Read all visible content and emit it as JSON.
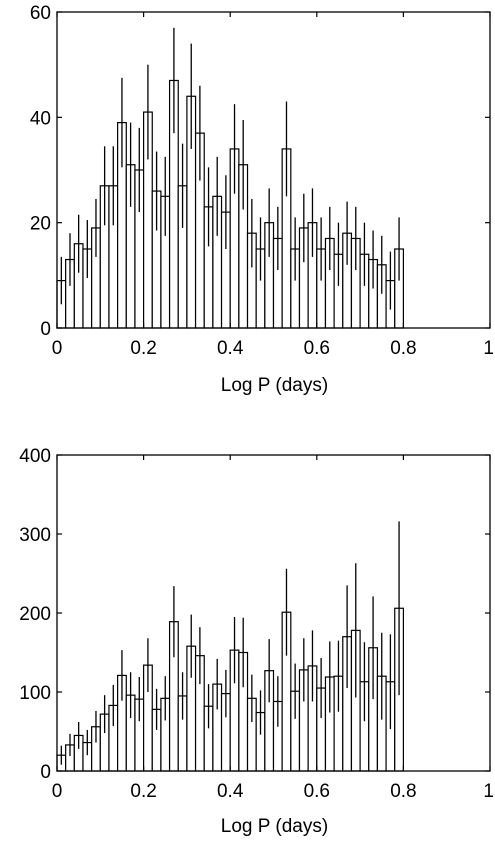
{
  "chart_data": [
    {
      "type": "bar",
      "title": "",
      "xlabel": "Log P (days)",
      "ylabel": "",
      "xlim": [
        0,
        1
      ],
      "ylim": [
        0,
        60
      ],
      "xticks": [
        0,
        0.2,
        0.4,
        0.6,
        0.8,
        1
      ],
      "xtick_labels": [
        "0",
        "0.2",
        "0.4",
        "0.6",
        "0.8",
        "1"
      ],
      "yticks": [
        0,
        20,
        40,
        60
      ],
      "ytick_labels": [
        "0",
        "20",
        "40",
        "60"
      ],
      "bin_width": 0.02,
      "values": [
        9,
        13,
        16,
        15,
        19,
        27,
        27,
        39,
        31,
        30,
        41,
        26,
        25,
        47,
        27,
        44,
        37,
        23,
        25,
        22,
        34,
        31,
        18,
        15,
        20,
        17,
        34,
        15,
        19,
        20,
        15,
        17,
        14,
        18,
        17,
        14,
        13,
        12,
        9,
        15
      ],
      "errors": [
        4.5,
        5,
        5.5,
        5.5,
        5.5,
        7.5,
        7.5,
        8.5,
        8,
        8,
        9,
        7.5,
        7.5,
        10,
        8,
        10,
        9,
        7.5,
        7.5,
        7,
        8.5,
        8.5,
        6.5,
        6,
        6.5,
        6,
        9,
        6,
        6.5,
        6.5,
        6,
        6,
        6,
        6,
        6,
        6,
        5.5,
        5.5,
        5.5,
        6
      ]
    },
    {
      "type": "bar",
      "title": "",
      "xlabel": "Log P (days)",
      "ylabel": "",
      "xlim": [
        0,
        1
      ],
      "ylim": [
        0,
        400
      ],
      "xticks": [
        0,
        0.2,
        0.4,
        0.6,
        0.8,
        1
      ],
      "xtick_labels": [
        "0",
        "0.2",
        "0.4",
        "0.6",
        "0.8",
        "1"
      ],
      "yticks": [
        0,
        100,
        200,
        300,
        400
      ],
      "ytick_labels": [
        "0",
        "100",
        "200",
        "300",
        "400"
      ],
      "bin_width": 0.02,
      "values": [
        20,
        33,
        45,
        36,
        56,
        72,
        83,
        121,
        96,
        91,
        134,
        78,
        92,
        189,
        95,
        158,
        146,
        82,
        110,
        98,
        153,
        150,
        92,
        74,
        127,
        88,
        201,
        101,
        128,
        133,
        105,
        119,
        120,
        170,
        178,
        113,
        156,
        120,
        113,
        206
      ],
      "errors": [
        12,
        14,
        17,
        16,
        20,
        24,
        26,
        32,
        29,
        28,
        34,
        26,
        28,
        45,
        30,
        40,
        36,
        28,
        32,
        30,
        42,
        44,
        30,
        28,
        40,
        32,
        55,
        35,
        40,
        45,
        38,
        45,
        45,
        65,
        85,
        50,
        65,
        55,
        60,
        110
      ]
    }
  ]
}
